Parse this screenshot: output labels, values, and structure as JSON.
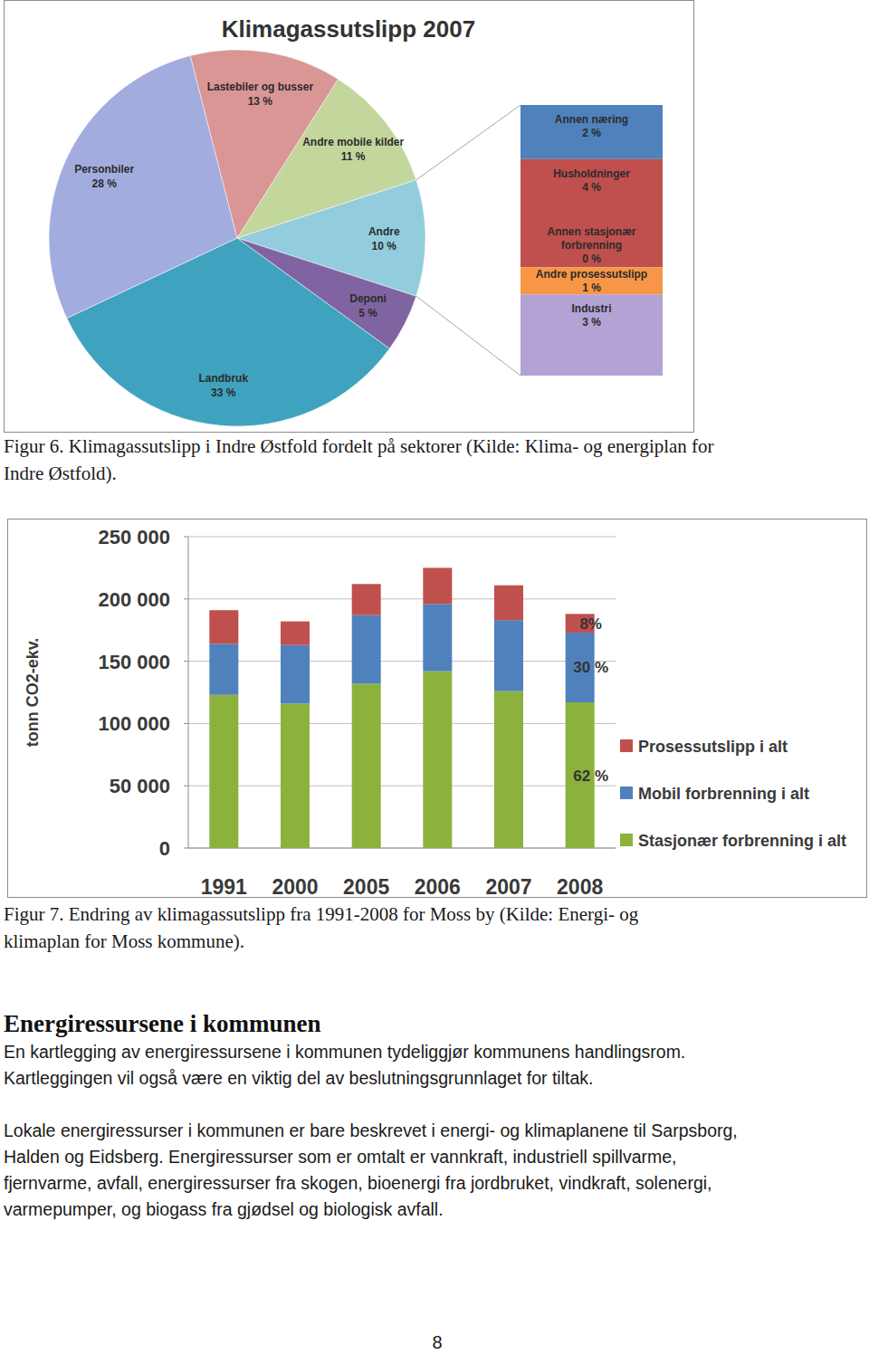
{
  "chart_data": [
    {
      "type": "pie",
      "title": "Klimagassutslipp 2007",
      "categories": [
        "Andre mobile kilder",
        "Andre",
        "Deponi",
        "Landbruk",
        "Personbiler",
        "Lastebiler og busser"
      ],
      "values": [
        11,
        10,
        5,
        33,
        28,
        13
      ],
      "value_labels": [
        "11 %",
        "10 %",
        "5 %",
        "33 %",
        "28 %",
        "13 %"
      ],
      "colors": [
        "#c3d69b",
        "#93cddd",
        "#8064a2",
        "#3fa3bf",
        "#a3acdf",
        "#d99694"
      ],
      "data_labels": true
    },
    {
      "type": "bar",
      "stacked": true,
      "categories": [
        null
      ],
      "series": [
        {
          "name": "Annen næring",
          "color": "#4f81bd",
          "values": [
            2
          ],
          "value_labels": [
            "2 %"
          ]
        },
        {
          "name": "Husholdninger",
          "color": "#c0504d",
          "values": [
            4
          ],
          "value_labels": [
            "4 %"
          ]
        },
        {
          "name": "Annen stasjonær forbrenning",
          "color": "#9bbb59",
          "values": [
            0
          ],
          "value_labels": [
            "0 %"
          ]
        },
        {
          "name": "Andre prosessutslipp",
          "color": "#f79646",
          "values": [
            1
          ],
          "value_labels": [
            "1 %"
          ]
        },
        {
          "name": "Industri",
          "color": "#b3a2d4",
          "values": [
            3
          ],
          "value_labels": [
            "3 %"
          ]
        }
      ],
      "data_labels": true,
      "tick_labels": false
    },
    {
      "type": "bar",
      "stacked": true,
      "categories": [
        "1991",
        "2000",
        "2005",
        "2006",
        "2007",
        "2008"
      ],
      "series": [
        {
          "name": "Stasjonær forbrenning i alt",
          "color": "#8cb13c",
          "values": [
            123000,
            116000,
            132000,
            142000,
            126000,
            117000
          ]
        },
        {
          "name": "Mobil forbrenning i alt",
          "color": "#4f81bd",
          "values": [
            41000,
            47000,
            55000,
            54000,
            57000,
            56000
          ]
        },
        {
          "name": "Prosessutslipp i alt",
          "color": "#c0504d",
          "values": [
            27000,
            19000,
            25000,
            29000,
            28000,
            15000
          ]
        }
      ],
      "ylabel": "tonn CO2-ekv.",
      "ylim": [
        0,
        250000
      ],
      "yticks": [
        0,
        {
          "value": 50000,
          "label": "50 000"
        },
        {
          "value": 100000,
          "label": "100 000"
        },
        {
          "value": 150000,
          "label": "150 000"
        },
        {
          "value": 200000,
          "label": "200 000"
        },
        {
          "value": 250000,
          "label": "250 000"
        }
      ],
      "grid": true,
      "legend": "right",
      "annotations": [
        {
          "x": "2008",
          "series": "Prosessutslipp i alt",
          "text": "8%"
        },
        {
          "x": "2008",
          "series": "Mobil forbrenning i alt",
          "text": "30 %"
        },
        {
          "x": "2008",
          "series": "Stasjonær forbrenning i alt",
          "text": "62 %"
        }
      ]
    }
  ],
  "document": {
    "captions": [
      [
        "Figur 6. Klimagassutslipp i Indre Østfold fordelt på sektorer (Kilde: Klima- og energiplan for",
        "Indre Østfold)."
      ],
      [
        "Figur 7. Endring av klimagassutslipp fra 1991-2008 for Moss by (Kilde: Energi- og",
        "klimaplan for Moss kommune)."
      ]
    ],
    "heading": "Energiressursene i kommunen",
    "paragraphs": [
      [
        "En kartlegging av energiressursene i kommunen tydeliggjør kommunens handlingsrom.",
        "Kartleggingen vil også være en viktig del av beslutningsgrunnlaget for tiltak."
      ],
      [
        "Lokale energiressurser i kommunen er bare beskrevet i energi- og klimaplanene til Sarpsborg,",
        "Halden og Eidsberg. Energiressurser som er omtalt er vannkraft, industriell spillvarme,",
        "fjernvarme, avfall, energiressurser fra skogen, bioenergi fra jordbruket, vindkraft, solenergi,",
        "varmepumper, og biogass fra gjødsel og biologisk avfall."
      ]
    ],
    "page_number": "8"
  }
}
